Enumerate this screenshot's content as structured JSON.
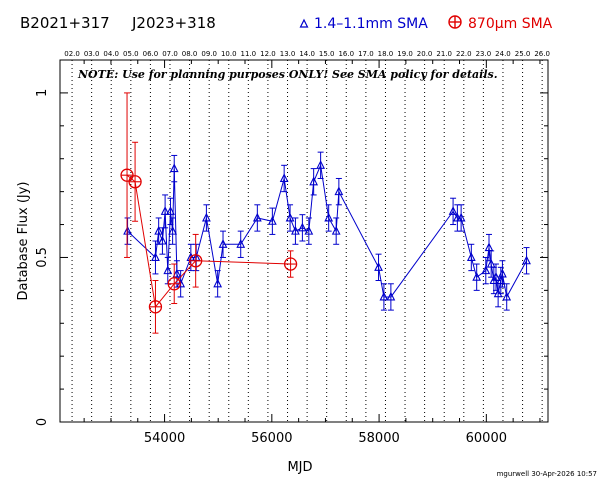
{
  "header": {
    "source_name": "B2021+317",
    "alt_name": "J2023+318",
    "legend_blue": "1.4–1.1mm SMA",
    "legend_red": "870μm SMA"
  },
  "note": "NOTE: Use for planning purposes ONLY! See SMA policy for details.",
  "footer": "mgurwell 30-Apr-2026 10:57",
  "colors": {
    "blue": "#0000cc",
    "red": "#e00000",
    "axis": "#000000"
  },
  "chart_data": {
    "type": "scatter",
    "xlabel": "MJD",
    "ylabel": "Database Flux (Jy)",
    "xlim": [
      52050,
      61150
    ],
    "ylim": [
      0,
      1.1
    ],
    "x_ticks": [
      54000,
      56000,
      58000,
      60000
    ],
    "y_ticks": [
      0,
      0.5,
      1
    ],
    "y_tick_labels": [
      "0",
      "0.5",
      "1"
    ],
    "top_axis_labels": [
      "02.0",
      "03.0",
      "04.0",
      "05.0",
      "06.0",
      "07.0",
      "08.0",
      "09.0",
      "10.0",
      "11.0",
      "12.0",
      "13.0",
      "14.0",
      "15.0",
      "16.0",
      "17.0",
      "18.0",
      "19.0",
      "20.0",
      "21.0",
      "22.0",
      "23.0",
      "24.0",
      "25.0",
      "26.0"
    ],
    "year_lines_mjd": [
      52275,
      52640,
      53005,
      53371,
      53736,
      54101,
      54466,
      54832,
      55197,
      55562,
      55927,
      56293,
      56658,
      57023,
      57388,
      57754,
      58119,
      58484,
      58849,
      59215,
      59580,
      59945,
      60310,
      60676,
      61041
    ],
    "series": [
      {
        "name": "1.4–1.1mm SMA",
        "points": [
          [
            53310,
            0.58,
            0.04
          ],
          [
            53830,
            0.5,
            0.05
          ],
          [
            53890,
            0.58,
            0.04
          ],
          [
            53960,
            0.55,
            0.04
          ],
          [
            54010,
            0.64,
            0.05
          ],
          [
            54060,
            0.46,
            0.04
          ],
          [
            54110,
            0.64,
            0.04
          ],
          [
            54150,
            0.58,
            0.04
          ],
          [
            54180,
            0.77,
            0.04
          ],
          [
            54230,
            0.45,
            0.04
          ],
          [
            54300,
            0.42,
            0.04
          ],
          [
            54490,
            0.5,
            0.04
          ],
          [
            54590,
            0.5,
            0.04
          ],
          [
            54780,
            0.62,
            0.04
          ],
          [
            54990,
            0.42,
            0.04
          ],
          [
            55090,
            0.54,
            0.04
          ],
          [
            55420,
            0.54,
            0.04
          ],
          [
            55730,
            0.62,
            0.04
          ],
          [
            56010,
            0.61,
            0.04
          ],
          [
            56230,
            0.74,
            0.04
          ],
          [
            56340,
            0.62,
            0.04
          ],
          [
            56440,
            0.58,
            0.04
          ],
          [
            56570,
            0.59,
            0.04
          ],
          [
            56690,
            0.58,
            0.04
          ],
          [
            56780,
            0.73,
            0.04
          ],
          [
            56910,
            0.78,
            0.04
          ],
          [
            57060,
            0.62,
            0.04
          ],
          [
            57200,
            0.58,
            0.04
          ],
          [
            57250,
            0.7,
            0.04
          ],
          [
            57990,
            0.47,
            0.04
          ],
          [
            58090,
            0.38,
            0.04
          ],
          [
            58220,
            0.38,
            0.04
          ],
          [
            59380,
            0.64,
            0.04
          ],
          [
            59460,
            0.62,
            0.04
          ],
          [
            59530,
            0.62,
            0.04
          ],
          [
            59720,
            0.5,
            0.04
          ],
          [
            59820,
            0.44,
            0.04
          ],
          [
            59990,
            0.46,
            0.04
          ],
          [
            60050,
            0.53,
            0.04
          ],
          [
            60090,
            0.48,
            0.04
          ],
          [
            60140,
            0.43,
            0.04
          ],
          [
            60180,
            0.44,
            0.04
          ],
          [
            60220,
            0.39,
            0.04
          ],
          [
            60270,
            0.43,
            0.04
          ],
          [
            60300,
            0.45,
            0.04
          ],
          [
            60380,
            0.38,
            0.04
          ],
          [
            60750,
            0.49,
            0.04
          ]
        ]
      },
      {
        "name": "870μm SMA",
        "points": [
          [
            53300,
            0.75,
            0.25
          ],
          [
            53450,
            0.73,
            0.12
          ],
          [
            53830,
            0.35,
            0.08
          ],
          [
            54180,
            0.42,
            0.06
          ],
          [
            54580,
            0.49,
            0.08
          ],
          [
            56350,
            0.48,
            0.04
          ]
        ]
      }
    ]
  }
}
